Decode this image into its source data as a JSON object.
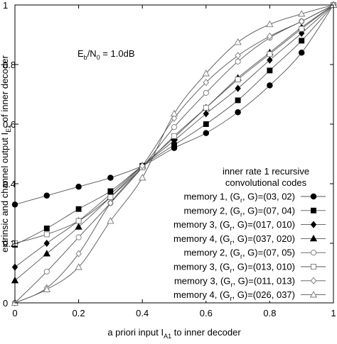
{
  "chart_data": {
    "type": "line",
    "title": "",
    "annotation": "E_b/N_0 = 1.0dB",
    "annotation_parts": {
      "main": "E",
      "sub1": "b",
      "mid": "/N",
      "sub2": "0",
      "tail": " = 1.0dB"
    },
    "xlabel": "a priori input I_A1 to inner decoder",
    "xlabel_parts": {
      "main": "a priori input I",
      "sub": "A1",
      "tail": " to inner decoder"
    },
    "ylabel": "extrinsic and channel output I_E1 of inner decoder",
    "ylabel_parts": {
      "main": "extrinsic and channel output I",
      "sub": "E1",
      "tail": " of inner decoder"
    },
    "xlim": [
      0,
      1
    ],
    "ylim": [
      0,
      1
    ],
    "xticks": [
      "0",
      "0.2",
      "0.4",
      "0.6",
      "0.8",
      "1"
    ],
    "yticks": [
      "0",
      "0.2",
      "0.4",
      "0.6",
      "0.8",
      "1"
    ],
    "grid": false,
    "legend_position": "bottom-right",
    "legend_title": [
      "inner rate 1 recursive",
      "convolutional codes"
    ],
    "x": [
      0,
      0.1,
      0.2,
      0.3,
      0.4,
      0.5,
      0.6,
      0.7,
      0.8,
      0.9,
      1.0
    ],
    "series": [
      {
        "name": "memory 1, (G_r, G)=(03, 02)",
        "label_parts": {
          "pre": "memory 1, (G",
          "sub": "r",
          "post": ", G)=(03, 02)"
        },
        "marker": "circle-filled",
        "values": [
          0.33,
          0.36,
          0.39,
          0.42,
          0.46,
          0.52,
          0.57,
          0.64,
          0.73,
          0.84,
          1.0
        ]
      },
      {
        "name": "memory 2, (G_r, G)=(07, 04)",
        "label_parts": {
          "pre": "memory 2, (G",
          "sub": "r",
          "post": ", G)=(07, 04)"
        },
        "marker": "square-filled",
        "values": [
          0.195,
          0.25,
          0.315,
          0.375,
          0.46,
          0.53,
          0.6,
          0.68,
          0.78,
          0.88,
          1.0
        ]
      },
      {
        "name": "memory 3, (G_r, G)=(017, 010)",
        "label_parts": {
          "pre": "memory 3, (G",
          "sub": "r",
          "post": ", G)=(017, 010)"
        },
        "marker": "diamond-filled",
        "values": [
          0.12,
          0.2,
          0.275,
          0.365,
          0.46,
          0.545,
          0.635,
          0.72,
          0.815,
          0.905,
          1.0
        ]
      },
      {
        "name": "memory 4, (G_r, G)=(037, 020)",
        "label_parts": {
          "pre": "memory 4, (G",
          "sub": "r",
          "post": ", G)=(037, 020)"
        },
        "marker": "triangle-filled",
        "values": [
          0.075,
          0.165,
          0.255,
          0.355,
          0.46,
          0.555,
          0.655,
          0.755,
          0.84,
          0.925,
          1.0
        ]
      },
      {
        "name": "memory 2, (G_r, G)=(07, 05)",
        "label_parts": {
          "pre": "memory 2, (G",
          "sub": "r",
          "post": ", G)=(07, 05)"
        },
        "marker": "circle-open",
        "values": [
          0.0,
          0.105,
          0.22,
          0.335,
          0.455,
          0.59,
          0.705,
          0.81,
          0.89,
          0.945,
          1.0
        ]
      },
      {
        "name": "memory 3, (G_r, G)=(013, 010)",
        "label_parts": {
          "pre": "memory 3, (G",
          "sub": "r",
          "post": ", G)=(013, 010)"
        },
        "marker": "square-open",
        "values": [
          0.2,
          0.23,
          0.275,
          0.355,
          0.455,
          0.56,
          0.655,
          0.75,
          0.835,
          0.92,
          1.0
        ]
      },
      {
        "name": "memory 3, (G_r, G)=(011, 013)",
        "label_parts": {
          "pre": "memory 3, (G",
          "sub": "r",
          "post": ", G)=(011, 013)"
        },
        "marker": "diamond-open",
        "values": [
          0.0,
          0.05,
          0.165,
          0.335,
          0.46,
          0.62,
          0.74,
          0.83,
          0.895,
          0.945,
          1.0
        ]
      },
      {
        "name": "memory 4, (G_r, G)=(026, 037)",
        "label_parts": {
          "pre": "memory 4, (G",
          "sub": "r",
          "post": ", G)=(026, 037)"
        },
        "marker": "triangle-open",
        "values": [
          0.0,
          0.045,
          0.12,
          0.275,
          0.42,
          0.635,
          0.77,
          0.875,
          0.935,
          0.97,
          1.0
        ]
      }
    ]
  }
}
